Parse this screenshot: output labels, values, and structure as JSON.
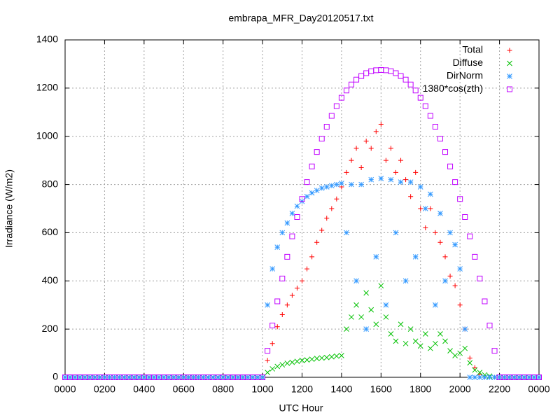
{
  "chart_data": {
    "type": "scatter",
    "title": "embrapa_MFR_Day20120517.txt",
    "x_label": "UTC Hour",
    "y_label": "Irradiance (W/m2)",
    "xlim": [
      0,
      24
    ],
    "ylim": [
      0,
      1400
    ],
    "xticks": [
      {
        "value": 0,
        "label": "0000"
      },
      {
        "value": 2,
        "label": "0200"
      },
      {
        "value": 4,
        "label": "0400"
      },
      {
        "value": 6,
        "label": "0600"
      },
      {
        "value": 8,
        "label": "0800"
      },
      {
        "value": 10,
        "label": "1000"
      },
      {
        "value": 12,
        "label": "1200"
      },
      {
        "value": 14,
        "label": "1400"
      },
      {
        "value": 16,
        "label": "1600"
      },
      {
        "value": 18,
        "label": "1800"
      },
      {
        "value": 20,
        "label": "2000"
      },
      {
        "value": 22,
        "label": "2200"
      },
      {
        "value": 24,
        "label": "0000"
      }
    ],
    "yticks": [
      0,
      200,
      400,
      600,
      800,
      1000,
      1200,
      1400
    ],
    "grid": true,
    "legend": "top-right",
    "x": [
      0,
      0.25,
      0.5,
      0.75,
      1,
      1.25,
      1.5,
      1.75,
      2,
      2.25,
      2.5,
      2.75,
      3,
      3.25,
      3.5,
      3.75,
      4,
      4.25,
      4.5,
      4.75,
      5,
      5.25,
      5.5,
      5.75,
      6,
      6.25,
      6.5,
      6.75,
      7,
      7.25,
      7.5,
      7.75,
      8,
      8.25,
      8.5,
      8.75,
      9,
      9.25,
      9.5,
      9.75,
      10,
      10.25,
      10.5,
      10.75,
      11,
      11.25,
      11.5,
      11.75,
      12,
      12.25,
      12.5,
      12.75,
      13,
      13.25,
      13.5,
      13.75,
      14,
      14.25,
      14.5,
      14.75,
      15,
      15.25,
      15.5,
      15.75,
      16,
      16.25,
      16.5,
      16.75,
      17,
      17.25,
      17.5,
      17.75,
      18,
      18.25,
      18.5,
      18.75,
      19,
      19.25,
      19.5,
      19.75,
      20,
      20.25,
      20.5,
      20.75,
      21,
      21.25,
      21.5,
      21.75,
      22,
      22.25,
      22.5,
      22.75,
      23,
      23.25,
      23.5,
      23.75,
      24
    ],
    "series": [
      {
        "name": "Total",
        "color": "#ff0000",
        "marker": "plus",
        "values": [
          0,
          0,
          0,
          0,
          0,
          0,
          0,
          0,
          0,
          0,
          0,
          0,
          0,
          0,
          0,
          0,
          0,
          0,
          0,
          0,
          0,
          0,
          0,
          0,
          0,
          0,
          0,
          0,
          0,
          0,
          0,
          0,
          0,
          0,
          0,
          0,
          0,
          0,
          0,
          0,
          0,
          70,
          140,
          210,
          260,
          300,
          340,
          370,
          400,
          450,
          500,
          560,
          610,
          660,
          700,
          740,
          790,
          850,
          900,
          950,
          870,
          980,
          950,
          1020,
          1050,
          900,
          950,
          850,
          900,
          820,
          750,
          850,
          700,
          620,
          700,
          600,
          560,
          500,
          420,
          380,
          300,
          200,
          80,
          40,
          10,
          0,
          0,
          0,
          0,
          0,
          0,
          0,
          0,
          0,
          0,
          0,
          0
        ]
      },
      {
        "name": "Diffuse",
        "color": "#00c000",
        "marker": "cross",
        "values": [
          0,
          0,
          0,
          0,
          0,
          0,
          0,
          0,
          0,
          0,
          0,
          0,
          0,
          0,
          0,
          0,
          0,
          0,
          0,
          0,
          0,
          0,
          0,
          0,
          0,
          0,
          0,
          0,
          0,
          0,
          0,
          0,
          0,
          0,
          0,
          0,
          0,
          0,
          0,
          0,
          0,
          20,
          35,
          45,
          52,
          58,
          62,
          66,
          70,
          72,
          75,
          78,
          80,
          82,
          85,
          88,
          90,
          200,
          250,
          300,
          250,
          350,
          280,
          220,
          380,
          250,
          180,
          150,
          220,
          140,
          200,
          150,
          130,
          180,
          120,
          140,
          180,
          150,
          110,
          90,
          100,
          120,
          60,
          30,
          20,
          10,
          5,
          0,
          0,
          0,
          0,
          0,
          0,
          0,
          0,
          0,
          0
        ]
      },
      {
        "name": "DirNorm",
        "color": "#3399ff",
        "marker": "star",
        "values": [
          0,
          0,
          0,
          0,
          0,
          0,
          0,
          0,
          0,
          0,
          0,
          0,
          0,
          0,
          0,
          0,
          0,
          0,
          0,
          0,
          0,
          0,
          0,
          0,
          0,
          0,
          0,
          0,
          0,
          0,
          0,
          0,
          0,
          0,
          0,
          0,
          0,
          0,
          0,
          0,
          0,
          300,
          450,
          540,
          600,
          640,
          680,
          710,
          730,
          750,
          765,
          775,
          785,
          790,
          795,
          800,
          805,
          600,
          800,
          400,
          800,
          200,
          820,
          500,
          825,
          300,
          820,
          600,
          810,
          400,
          810,
          500,
          790,
          700,
          760,
          300,
          680,
          400,
          600,
          550,
          450,
          200,
          0,
          0,
          0,
          0,
          0,
          0,
          0,
          0,
          0,
          0,
          0,
          0,
          0,
          0,
          0
        ]
      },
      {
        "name": "1380*cos(zth)",
        "color": "#c000ff",
        "marker": "square",
        "values": [
          0,
          0,
          0,
          0,
          0,
          0,
          0,
          0,
          0,
          0,
          0,
          0,
          0,
          0,
          0,
          0,
          0,
          0,
          0,
          0,
          0,
          0,
          0,
          0,
          0,
          0,
          0,
          0,
          0,
          0,
          0,
          0,
          0,
          0,
          0,
          0,
          0,
          0,
          0,
          0,
          0,
          110,
          215,
          315,
          410,
          500,
          585,
          665,
          740,
          810,
          875,
          935,
          990,
          1040,
          1085,
          1125,
          1160,
          1190,
          1215,
          1235,
          1250,
          1262,
          1270,
          1274,
          1275,
          1274,
          1270,
          1262,
          1250,
          1235,
          1215,
          1190,
          1160,
          1125,
          1085,
          1040,
          990,
          935,
          875,
          810,
          740,
          665,
          585,
          500,
          410,
          315,
          215,
          110,
          0,
          0,
          0,
          0,
          0,
          0,
          0,
          0,
          0
        ]
      }
    ]
  }
}
